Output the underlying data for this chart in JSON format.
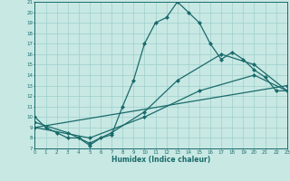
{
  "title": "",
  "xlabel": "Humidex (Indice chaleur)",
  "ylabel": "",
  "xlim": [
    0,
    23
  ],
  "ylim": [
    7,
    21
  ],
  "yticks": [
    7,
    8,
    9,
    10,
    11,
    12,
    13,
    14,
    15,
    16,
    17,
    18,
    19,
    20,
    21
  ],
  "xticks": [
    0,
    1,
    2,
    3,
    4,
    5,
    6,
    7,
    8,
    9,
    10,
    11,
    12,
    13,
    14,
    15,
    16,
    17,
    18,
    19,
    20,
    21,
    22,
    23
  ],
  "bg_color": "#c8e8e4",
  "grid_color": "#9ecfcb",
  "line_color": "#1a6b6b",
  "line_width": 0.9,
  "marker": "D",
  "marker_size": 2.0,
  "lines": [
    {
      "x": [
        0,
        1,
        2,
        3,
        4,
        5,
        6,
        7,
        8,
        9,
        10,
        11,
        12,
        13,
        14,
        15,
        16,
        17,
        18,
        19,
        20,
        21,
        22,
        23
      ],
      "y": [
        10,
        9,
        8.5,
        8,
        8,
        7.3,
        8,
        8.3,
        11,
        13.5,
        17,
        19,
        19.5,
        21,
        20,
        19,
        17,
        15.5,
        16.2,
        15.5,
        14.5,
        13.8,
        12.5,
        12.5
      ]
    },
    {
      "x": [
        0,
        3,
        5,
        7,
        10,
        13,
        17,
        20,
        23
      ],
      "y": [
        9.5,
        8.5,
        7.5,
        8.5,
        10.5,
        13.5,
        16,
        15,
        12.5
      ]
    },
    {
      "x": [
        0,
        5,
        10,
        15,
        20,
        23
      ],
      "y": [
        9,
        8,
        10,
        12.5,
        14,
        12.5
      ]
    },
    {
      "x": [
        0,
        23
      ],
      "y": [
        9,
        13
      ]
    }
  ]
}
